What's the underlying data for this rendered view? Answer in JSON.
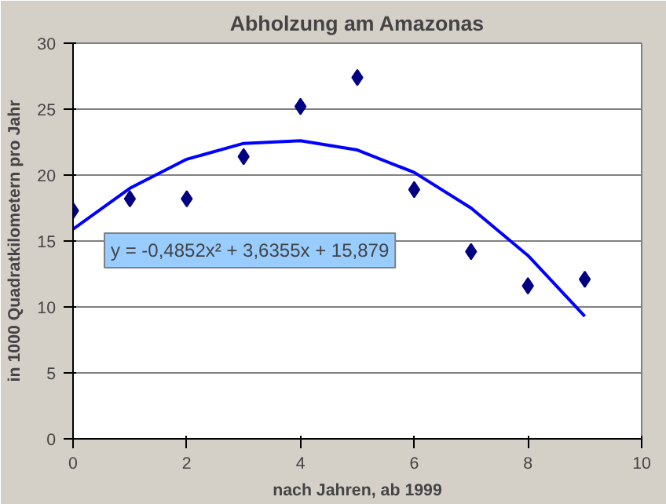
{
  "chart_data": {
    "type": "scatter",
    "title": "Abholzung am Amazonas",
    "xlabel": "nach Jahren, ab 1999",
    "ylabel": "in 1000 Quadratkilometern pro Jahr",
    "xlim": [
      0,
      10
    ],
    "ylim": [
      0,
      30
    ],
    "xticks": [
      0,
      2,
      4,
      6,
      8,
      10
    ],
    "yticks": [
      0,
      5,
      10,
      15,
      20,
      25,
      30
    ],
    "grid": "y",
    "series": [
      {
        "marker": "diamond",
        "color": "#000080",
        "x": [
          0,
          1,
          2,
          3,
          4,
          5,
          6,
          7,
          8,
          9
        ],
        "values": [
          17.3,
          18.2,
          18.2,
          21.4,
          25.2,
          27.4,
          18.9,
          14.2,
          11.6,
          12.1
        ]
      },
      {
        "type": "line",
        "line_style": "solid",
        "color": "#0000ff",
        "x": [
          0,
          1,
          2,
          3,
          4,
          5,
          6,
          7,
          8,
          9
        ],
        "values": [
          15.9,
          19.0,
          21.2,
          22.4,
          22.6,
          21.9,
          20.2,
          17.5,
          13.9,
          9.3
        ]
      }
    ],
    "annotations": [
      "y = -0,4852x² + 3,6355x + 15,879"
    ]
  }
}
